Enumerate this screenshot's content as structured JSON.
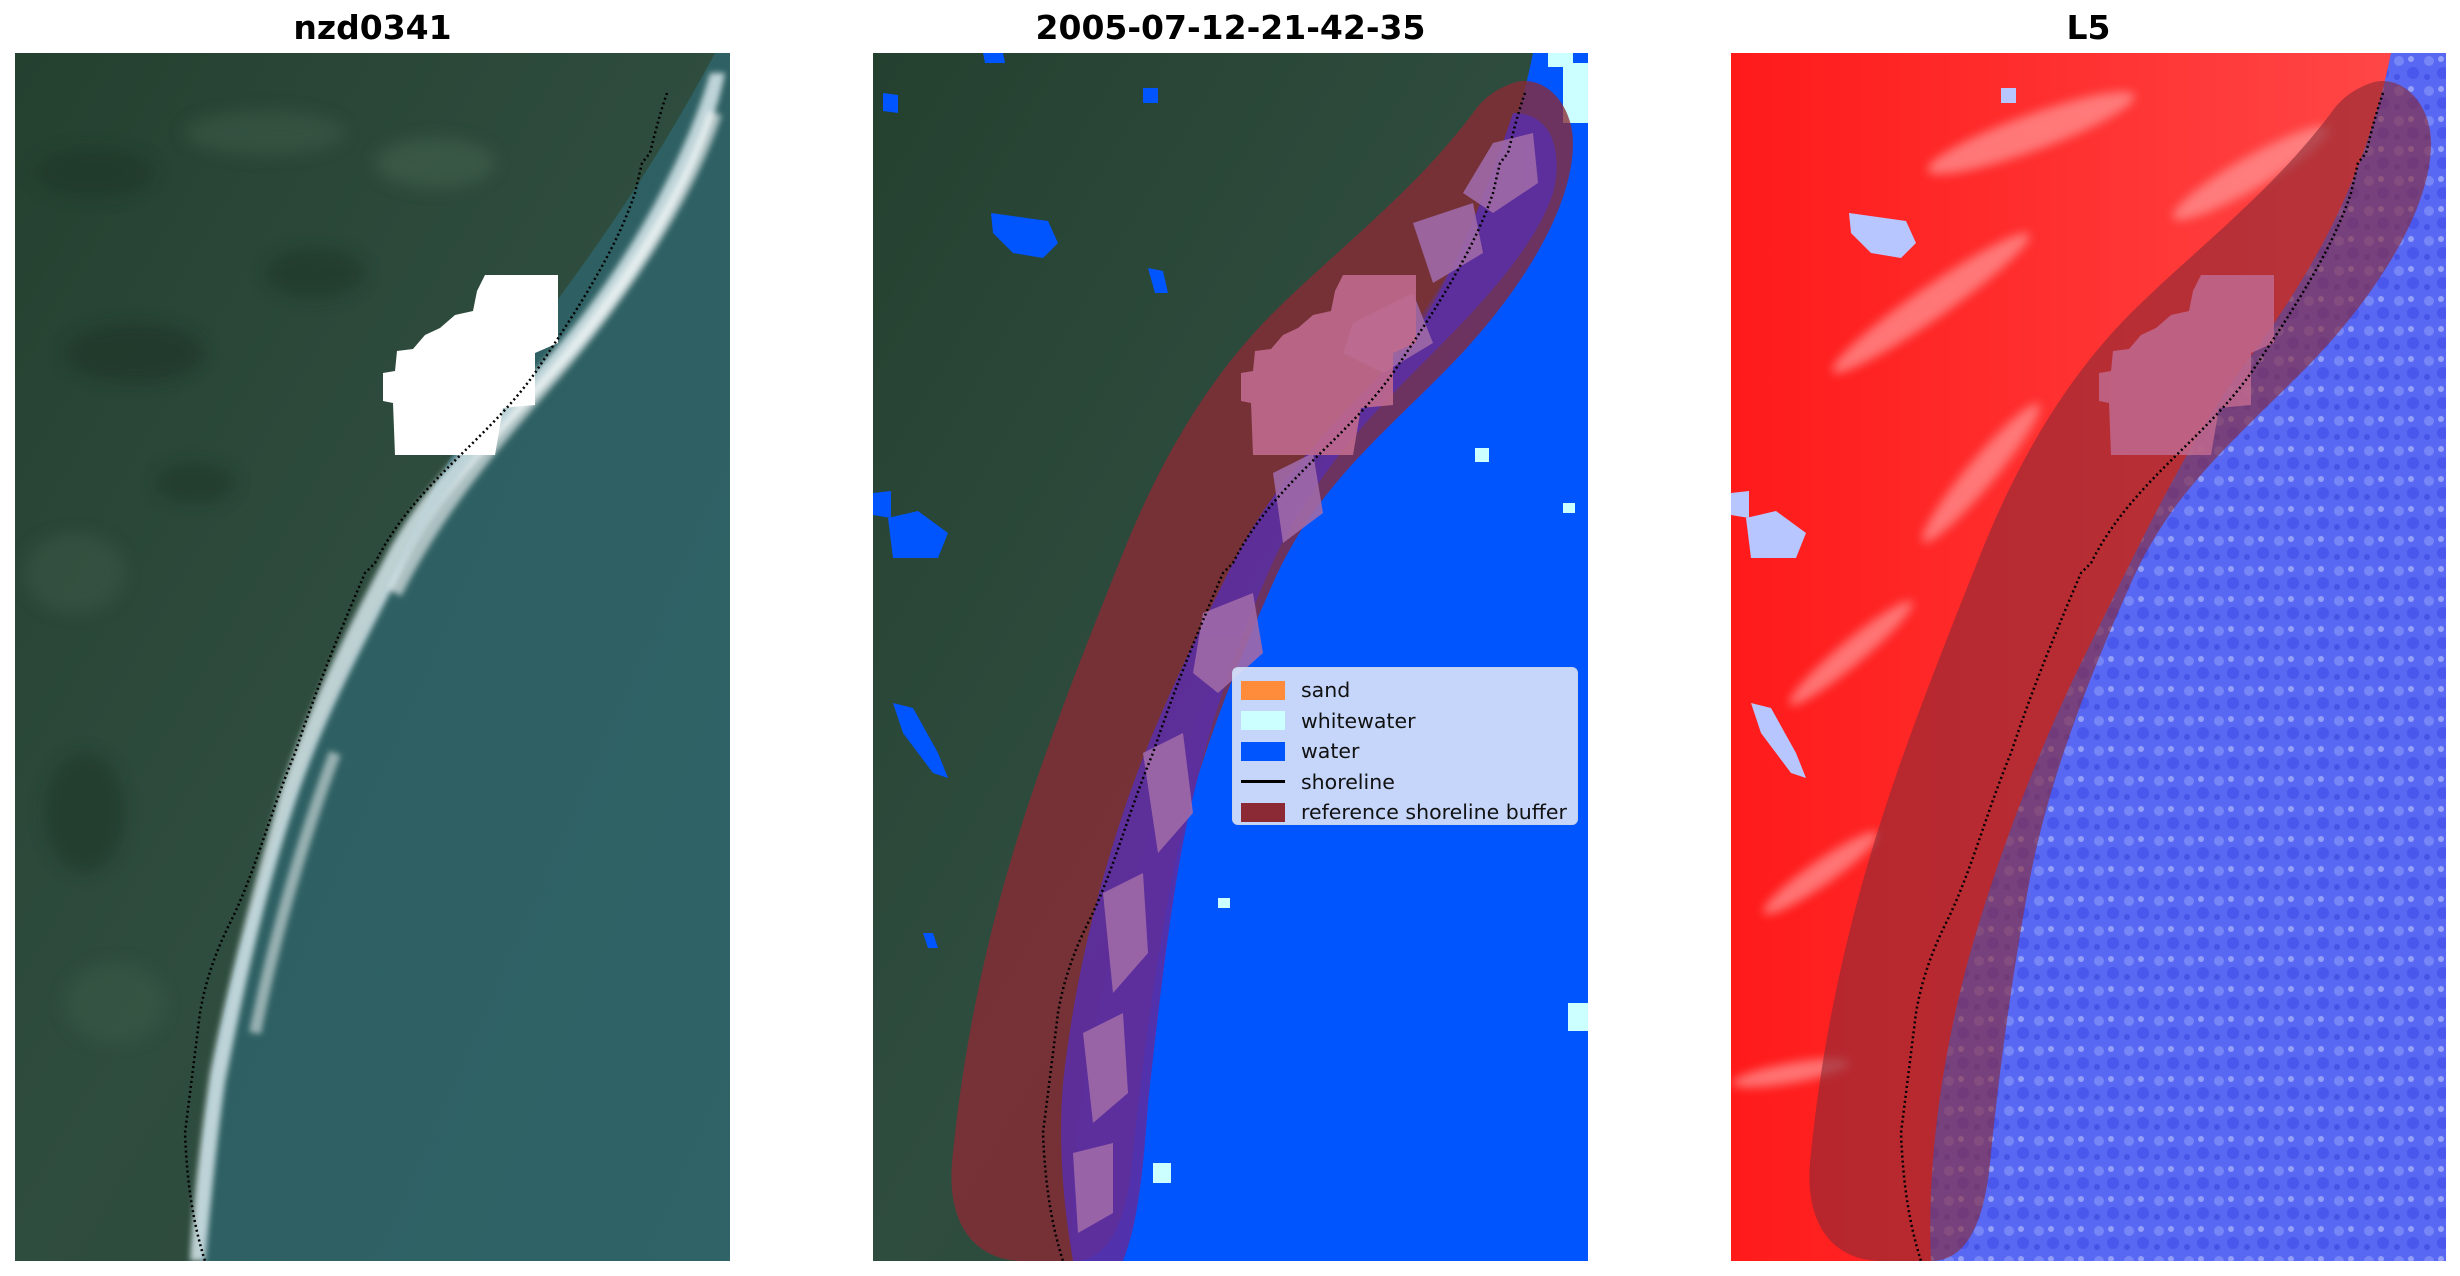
{
  "panels": [
    {
      "title": "nzd0341"
    },
    {
      "title": "2005-07-12-21-42-35"
    },
    {
      "title": "L5"
    }
  ],
  "legend": {
    "items": [
      {
        "label": "sand",
        "color": "#ff8c3a"
      },
      {
        "label": "whitewater",
        "color": "#ccffff"
      },
      {
        "label": "water",
        "color": "#0055ff"
      },
      {
        "label": "shoreline",
        "color": "#000000"
      },
      {
        "label": "reference shoreline buffer",
        "color": "#8b2a35"
      }
    ]
  },
  "colors": {
    "forest": "#2c4a3e",
    "sea": "#2e5e64",
    "water_class": "#0055ff",
    "buffer": "#8b2a35",
    "land_index": "#ff1a1a",
    "water_index": "#2a3cf0"
  }
}
